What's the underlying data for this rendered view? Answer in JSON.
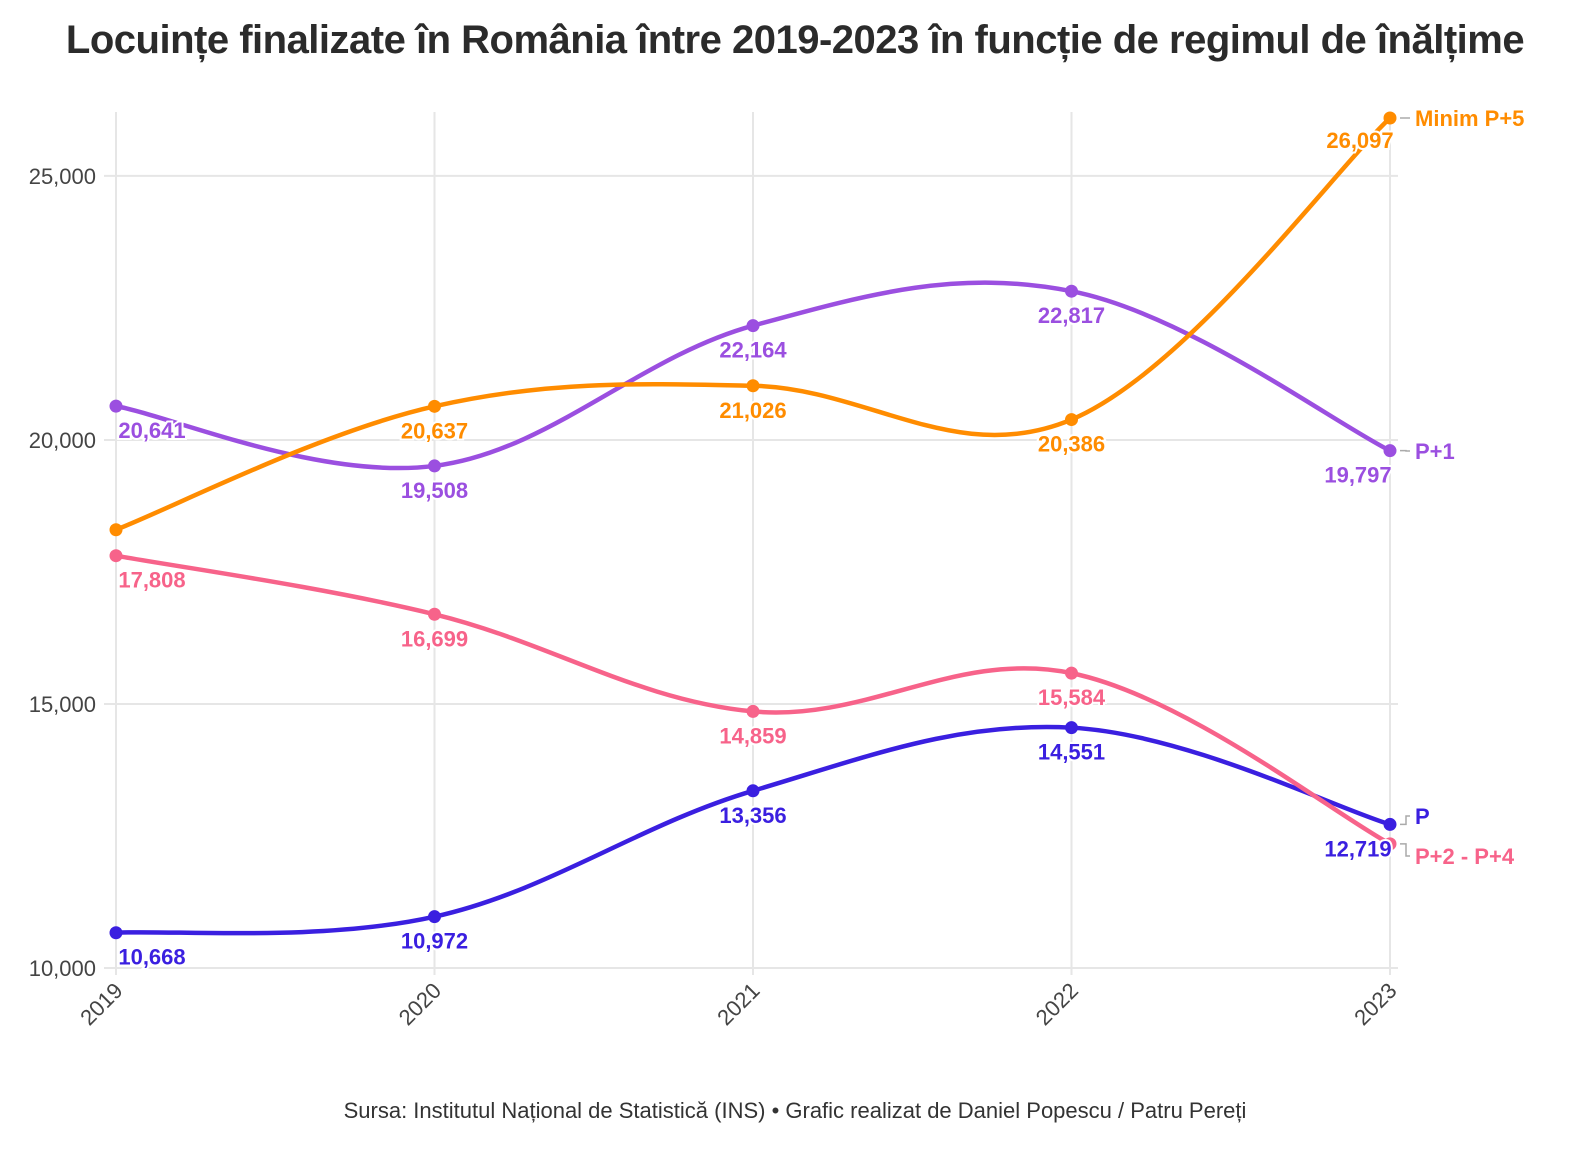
{
  "chart_data": {
    "type": "line",
    "title": "Locuințe finalizate în România între 2019-2023 în funcție de regimul de înălțime",
    "caption": "Sursa: Institutul Național de Statistică (INS) • Grafic realizat de Daniel Popescu / Patru Pereți",
    "x": [
      "2019",
      "2020",
      "2021",
      "2022",
      "2023"
    ],
    "ylim": [
      10000,
      26097
    ],
    "yticks": [
      10000,
      15000,
      20000,
      25000
    ],
    "ytick_labels": [
      "10,000",
      "15,000",
      "20,000",
      "25,000"
    ],
    "grid": true,
    "legend": "direct labels at line ends (right)",
    "series": [
      {
        "name": "Minim P+5",
        "color": "#FF8C00",
        "values": [
          18300,
          20637,
          21026,
          20386,
          26097
        ],
        "labels": [
          "",
          "20,637",
          "21,026",
          "20,386",
          "26,097"
        ]
      },
      {
        "name": "P+1",
        "color": "#9B4FE0",
        "values": [
          20641,
          19508,
          22164,
          22817,
          19797
        ],
        "labels": [
          "20,641",
          "19,508",
          "22,164",
          "22,817",
          "19,797"
        ]
      },
      {
        "name": "P+2 - P+4",
        "color": "#F7638A",
        "values": [
          17808,
          16699,
          14859,
          15584,
          12350
        ],
        "labels": [
          "17,808",
          "16,699",
          "14,859",
          "15,584",
          ""
        ]
      },
      {
        "name": "P",
        "color": "#3A1FE0",
        "values": [
          10668,
          10972,
          13356,
          14551,
          12719
        ],
        "labels": [
          "10,668",
          "10,972",
          "13,356",
          "14,551",
          "12,719"
        ]
      }
    ]
  }
}
